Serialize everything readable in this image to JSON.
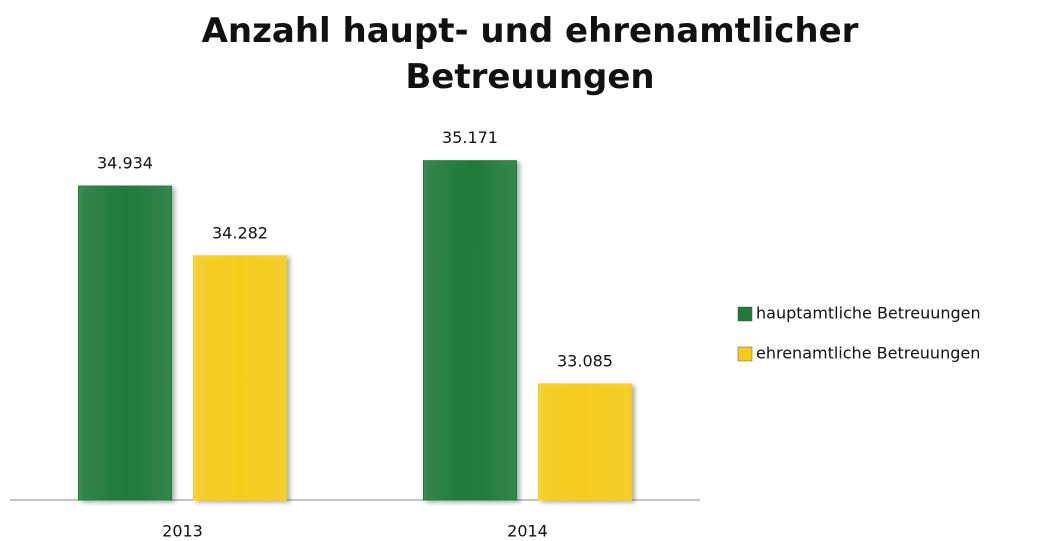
{
  "chart_data": {
    "type": "bar",
    "title": "Anzahl haupt- und ehrenamtlicher Betreuungen",
    "categories": [
      "2013",
      "2014"
    ],
    "series": [
      {
        "name": "hauptamtliche Betreuungen",
        "color": "#1f7a3a",
        "values": [
          34934,
          35171
        ],
        "value_labels": [
          "34.934",
          "35.171"
        ]
      },
      {
        "name": "ehrenamtliche Betreuungen",
        "color": "#f7cd1a",
        "values": [
          34282,
          33085
        ],
        "value_labels": [
          "34.282",
          "33.085"
        ]
      }
    ],
    "ylim": [
      32000,
      36000
    ],
    "legend": "right"
  }
}
